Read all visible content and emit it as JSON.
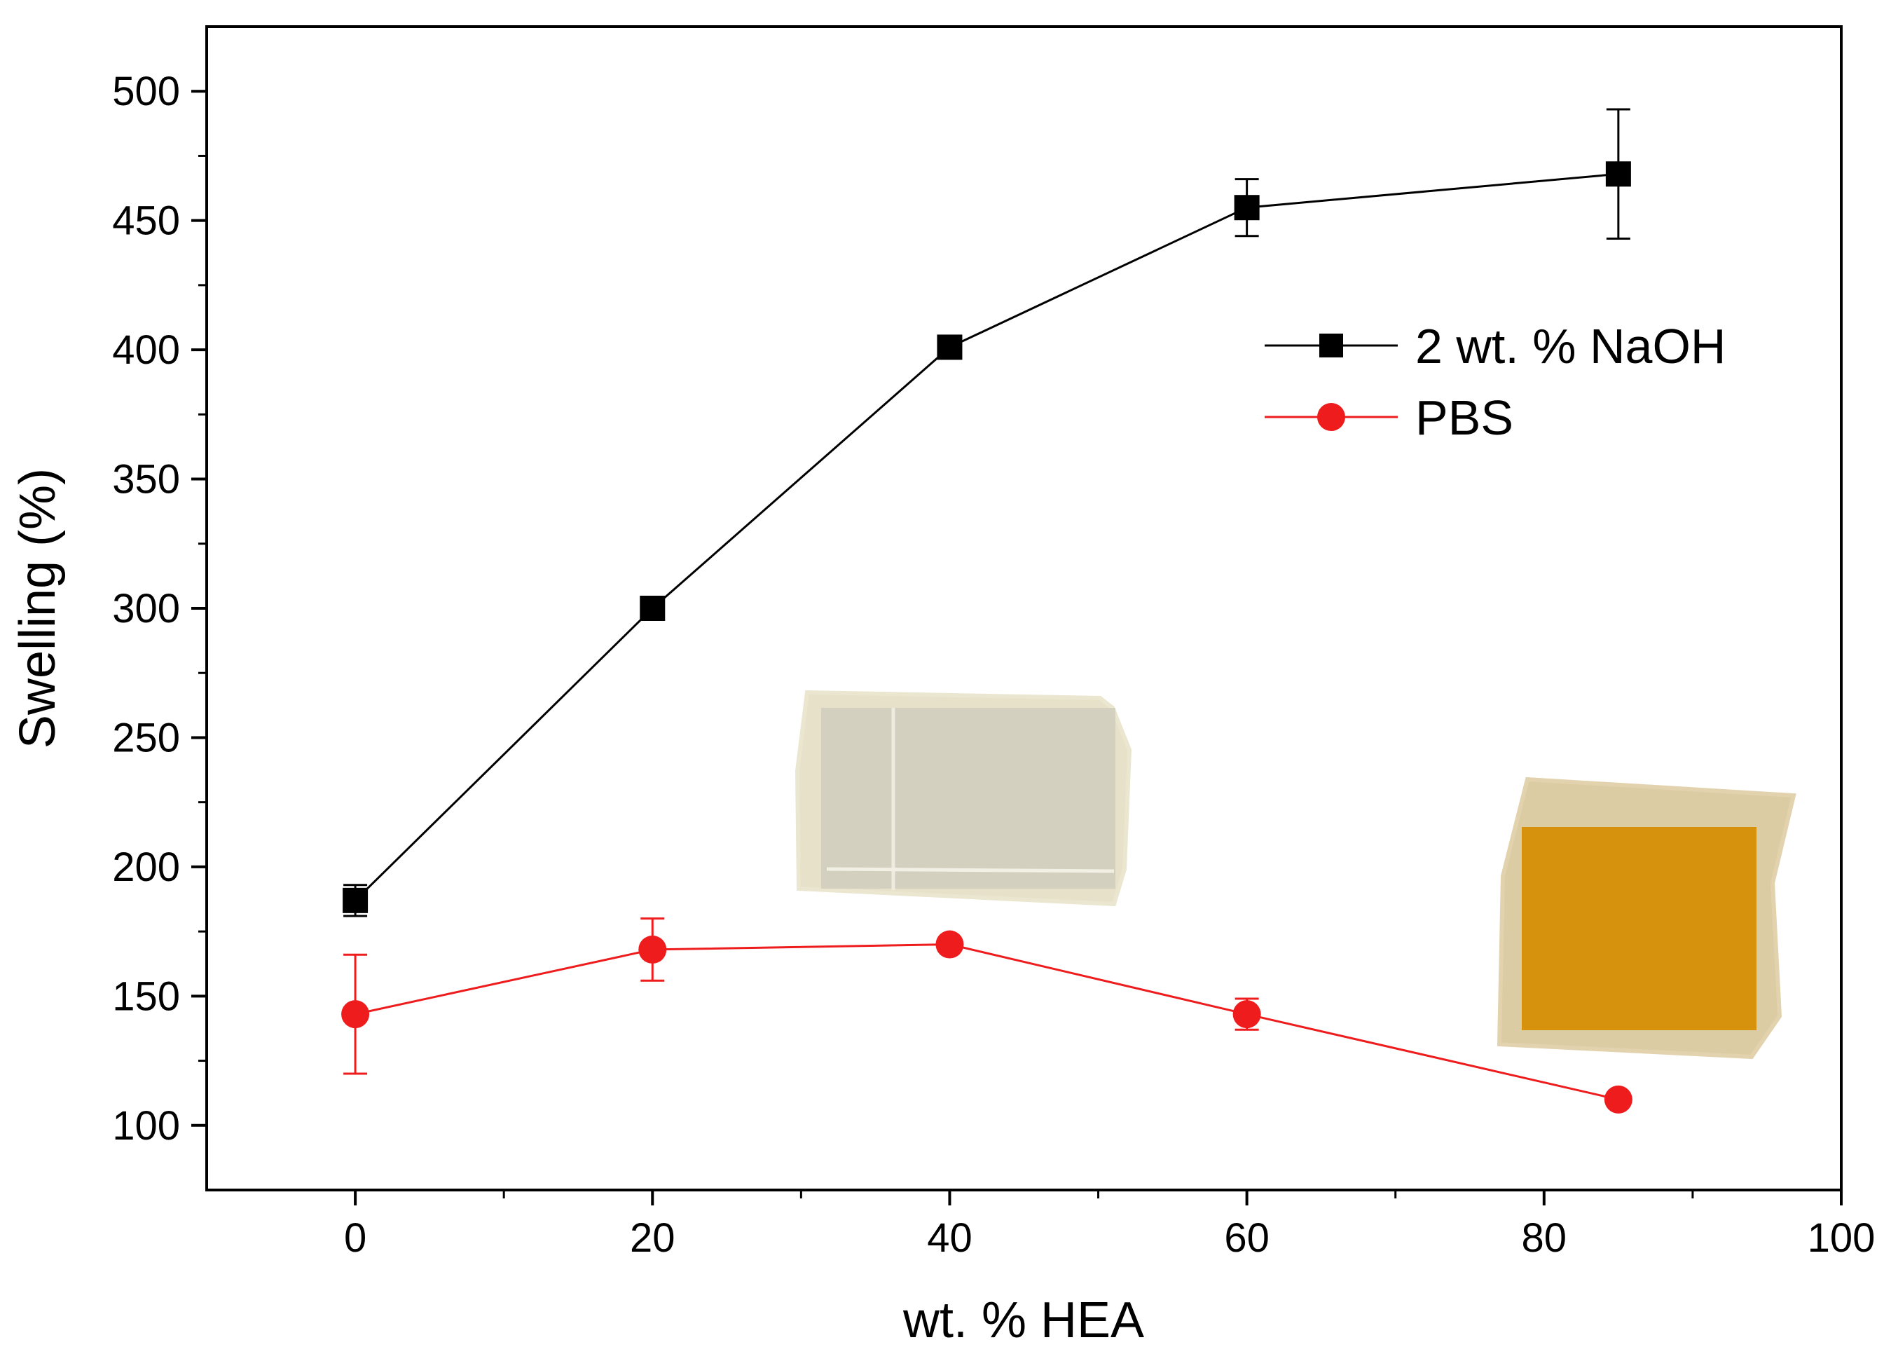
{
  "chart_data": {
    "type": "line",
    "title": "",
    "xlabel": "wt. % HEA",
    "ylabel": "Swelling (%)",
    "xlim": [
      -10,
      100
    ],
    "ylim": [
      75,
      525
    ],
    "x_ticks": [
      0,
      20,
      40,
      60,
      80,
      100
    ],
    "x_tick_labels": [
      "0",
      "20",
      "40",
      "60",
      "80",
      "100"
    ],
    "x_minor_ticks": [
      10,
      30,
      50,
      70,
      90
    ],
    "y_ticks": [
      100,
      150,
      200,
      250,
      300,
      350,
      400,
      450,
      500
    ],
    "y_tick_labels": [
      "100",
      "150",
      "200",
      "250",
      "300",
      "350",
      "400",
      "450",
      "500"
    ],
    "y_minor_ticks": [
      125,
      175,
      225,
      275,
      325,
      375,
      425,
      475
    ],
    "grid": false,
    "legend_position": "upper-right",
    "series": [
      {
        "name": "2 wt. % NaOH",
        "color": "#000000",
        "marker": "square",
        "x": [
          0,
          20,
          40,
          60,
          85
        ],
        "y": [
          187,
          300,
          401,
          455,
          468
        ],
        "err": [
          6,
          0,
          0,
          11,
          25
        ]
      },
      {
        "name": "PBS",
        "color": "#ee1c1c",
        "marker": "circle",
        "x": [
          0,
          20,
          40,
          60,
          85
        ],
        "y": [
          143,
          168,
          170,
          143,
          110
        ],
        "err": [
          23,
          12,
          0,
          6,
          0
        ]
      }
    ]
  },
  "insets": [
    {
      "name": "hydrogel-sample-clear",
      "fill": "#d9d6c4",
      "edge": "#e8e2c9"
    },
    {
      "name": "hydrogel-sample-amber",
      "fill": "#d8940e",
      "edge": "#d9c79c"
    }
  ]
}
